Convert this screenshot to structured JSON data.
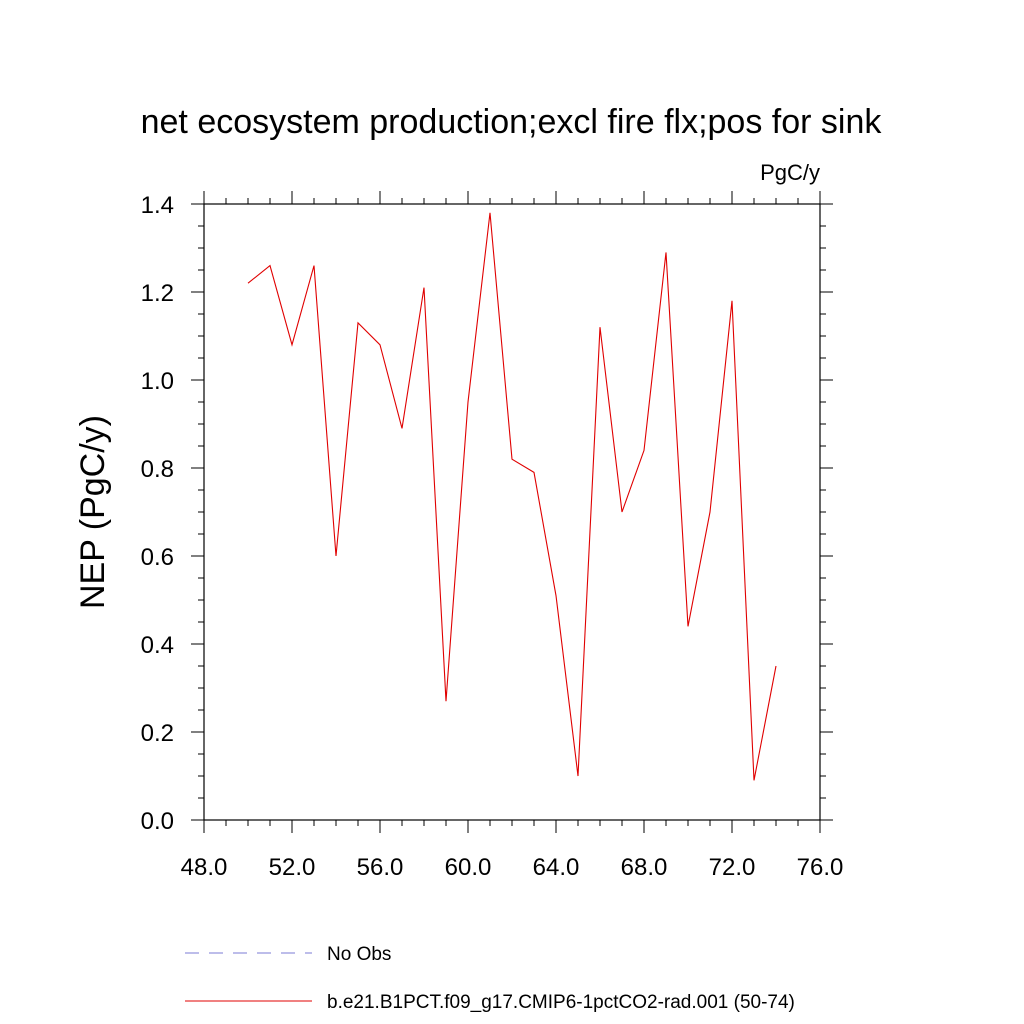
{
  "chart_data": {
    "type": "line",
    "title": "net ecosystem production;excl fire flx;pos for sink",
    "units": "PgC/y",
    "xlabel": "",
    "ylabel": "NEP  (PgC/y)",
    "xlim": [
      48,
      76
    ],
    "ylim": [
      0,
      1.4
    ],
    "x_ticks": [
      "48.0",
      "52.0",
      "56.0",
      "60.0",
      "64.0",
      "68.0",
      "72.0",
      "76.0"
    ],
    "y_ticks": [
      "0.0",
      "0.2",
      "0.4",
      "0.6",
      "0.8",
      "1.0",
      "1.2",
      "1.4"
    ],
    "grid": false,
    "legend_position": "bottom",
    "series": [
      {
        "name": "No Obs",
        "color": "#7b7bd6",
        "style": "dashed",
        "x": [],
        "values": []
      },
      {
        "name": "b.e21.B1PCT.f09_g17.CMIP6-1pctCO2-rad.001 (50-74)",
        "color": "#e00000",
        "style": "solid",
        "x": [
          50,
          51,
          52,
          53,
          54,
          55,
          56,
          57,
          58,
          59,
          60,
          61,
          62,
          63,
          64,
          65,
          66,
          67,
          68,
          69,
          70,
          71,
          72,
          73,
          74
        ],
        "values": [
          1.22,
          1.26,
          1.08,
          1.26,
          0.6,
          1.13,
          1.08,
          0.89,
          1.21,
          0.27,
          0.95,
          1.38,
          0.82,
          0.79,
          0.51,
          0.1,
          1.12,
          0.7,
          0.84,
          1.29,
          0.44,
          0.7,
          1.18,
          0.09,
          0.35
        ]
      }
    ]
  }
}
